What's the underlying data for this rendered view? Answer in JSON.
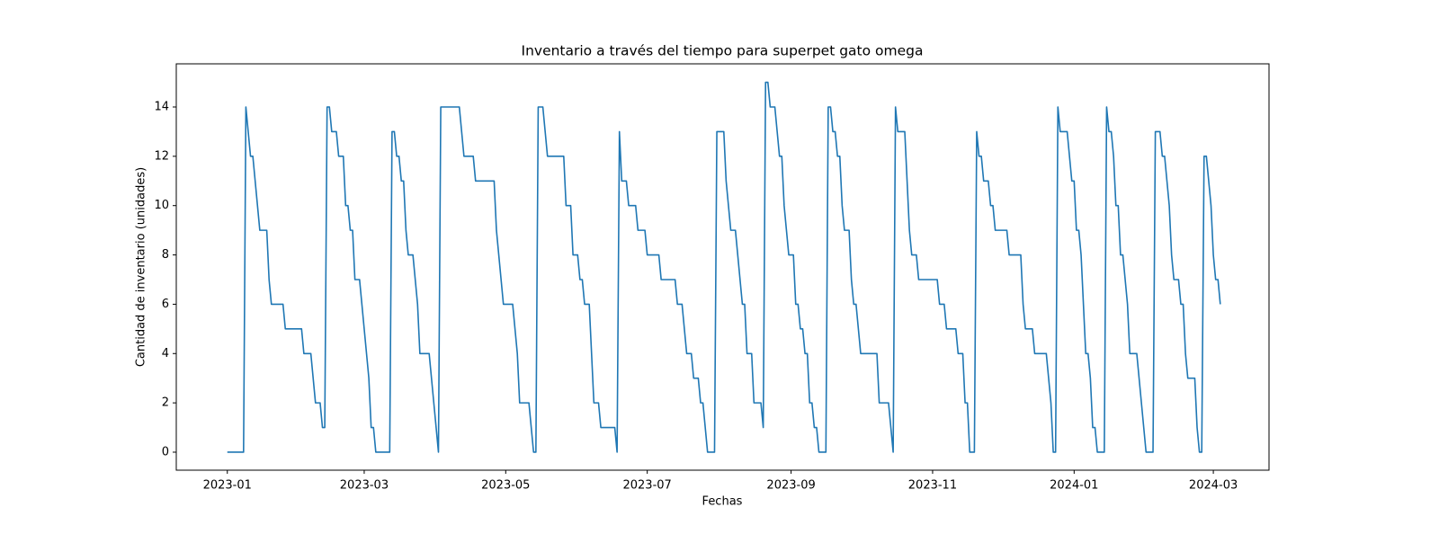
{
  "chart_data": {
    "type": "line",
    "title": "Inventario a través del tiempo para superpet gato omega",
    "xlabel": "Fechas",
    "ylabel": "Cantidad de inventario (unidades)",
    "x": [
      "2023-01-01",
      "2023-01-08",
      "2023-01-09",
      "2023-01-11",
      "2023-01-12",
      "2023-01-15",
      "2023-01-18",
      "2023-01-19",
      "2023-01-20",
      "2023-01-25",
      "2023-01-26",
      "2023-02-02",
      "2023-02-03",
      "2023-02-06",
      "2023-02-08",
      "2023-02-10",
      "2023-02-11",
      "2023-02-12",
      "2023-02-13",
      "2023-02-14",
      "2023-02-15",
      "2023-02-17",
      "2023-02-18",
      "2023-02-20",
      "2023-02-21",
      "2023-02-22",
      "2023-02-23",
      "2023-02-24",
      "2023-02-25",
      "2023-02-27",
      "2023-03-03",
      "2023-03-04",
      "2023-03-05",
      "2023-03-06",
      "2023-03-12",
      "2023-03-13",
      "2023-03-14",
      "2023-03-15",
      "2023-03-16",
      "2023-03-17",
      "2023-03-18",
      "2023-03-19",
      "2023-03-20",
      "2023-03-22",
      "2023-03-24",
      "2023-03-25",
      "2023-03-29",
      "2023-04-02",
      "2023-04-03",
      "2023-04-11",
      "2023-04-13",
      "2023-04-17",
      "2023-04-18",
      "2023-04-26",
      "2023-04-27",
      "2023-04-30",
      "2023-05-04",
      "2023-05-06",
      "2023-05-07",
      "2023-05-11",
      "2023-05-13",
      "2023-05-14",
      "2023-05-15",
      "2023-05-17",
      "2023-05-19",
      "2023-05-26",
      "2023-05-27",
      "2023-05-29",
      "2023-05-30",
      "2023-06-01",
      "2023-06-02",
      "2023-06-03",
      "2023-06-04",
      "2023-06-06",
      "2023-06-08",
      "2023-06-10",
      "2023-06-11",
      "2023-06-17",
      "2023-06-18",
      "2023-06-19",
      "2023-06-20",
      "2023-06-22",
      "2023-06-23",
      "2023-06-26",
      "2023-06-27",
      "2023-06-30",
      "2023-07-01",
      "2023-07-06",
      "2023-07-07",
      "2023-07-13",
      "2023-07-14",
      "2023-07-16",
      "2023-07-18",
      "2023-07-20",
      "2023-07-21",
      "2023-07-23",
      "2023-07-24",
      "2023-07-25",
      "2023-07-27",
      "2023-07-30",
      "2023-07-31",
      "2023-08-03",
      "2023-08-04",
      "2023-08-06",
      "2023-08-08",
      "2023-08-11",
      "2023-08-12",
      "2023-08-13",
      "2023-08-15",
      "2023-08-16",
      "2023-08-19",
      "2023-08-20",
      "2023-08-21",
      "2023-08-22",
      "2023-08-23",
      "2023-08-25",
      "2023-08-27",
      "2023-08-28",
      "2023-08-29",
      "2023-08-31",
      "2023-09-02",
      "2023-09-03",
      "2023-09-04",
      "2023-09-05",
      "2023-09-06",
      "2023-09-07",
      "2023-09-08",
      "2023-09-09",
      "2023-09-10",
      "2023-09-11",
      "2023-09-12",
      "2023-09-13",
      "2023-09-16",
      "2023-09-17",
      "2023-09-18",
      "2023-09-19",
      "2023-09-20",
      "2023-09-21",
      "2023-09-22",
      "2023-09-23",
      "2023-09-24",
      "2023-09-26",
      "2023-09-27",
      "2023-09-28",
      "2023-09-29",
      "2023-10-01",
      "2023-10-08",
      "2023-10-09",
      "2023-10-13",
      "2023-10-15",
      "2023-10-16",
      "2023-10-17",
      "2023-10-20",
      "2023-10-22",
      "2023-10-23",
      "2023-10-25",
      "2023-10-26",
      "2023-11-03",
      "2023-11-04",
      "2023-11-06",
      "2023-11-07",
      "2023-11-11",
      "2023-11-12",
      "2023-11-14",
      "2023-11-15",
      "2023-11-16",
      "2023-11-17",
      "2023-11-19",
      "2023-11-20",
      "2023-11-21",
      "2023-11-22",
      "2023-11-23",
      "2023-11-25",
      "2023-11-26",
      "2023-11-27",
      "2023-11-28",
      "2023-12-03",
      "2023-12-04",
      "2023-12-09",
      "2023-12-10",
      "2023-12-11",
      "2023-12-14",
      "2023-12-15",
      "2023-12-20",
      "2023-12-21",
      "2023-12-22",
      "2023-12-23",
      "2023-12-24",
      "2023-12-25",
      "2023-12-26",
      "2023-12-29",
      "2023-12-31",
      "2024-01-01",
      "2024-01-02",
      "2024-01-03",
      "2024-01-04",
      "2024-01-06",
      "2024-01-07",
      "2024-01-08",
      "2024-01-09",
      "2024-01-10",
      "2024-01-11",
      "2024-01-14",
      "2024-01-15",
      "2024-01-16",
      "2024-01-17",
      "2024-01-18",
      "2024-01-19",
      "2024-01-20",
      "2024-01-21",
      "2024-01-22",
      "2024-01-24",
      "2024-01-25",
      "2024-01-28",
      "2024-02-01",
      "2024-02-04",
      "2024-02-05",
      "2024-02-07",
      "2024-02-08",
      "2024-02-09",
      "2024-02-11",
      "2024-02-12",
      "2024-02-13",
      "2024-02-15",
      "2024-02-16",
      "2024-02-17",
      "2024-02-18",
      "2024-02-19",
      "2024-02-22",
      "2024-02-23",
      "2024-02-24",
      "2024-02-25",
      "2024-02-26",
      "2024-02-27",
      "2024-02-29",
      "2024-03-01",
      "2024-03-02",
      "2024-03-03",
      "2024-03-04"
    ],
    "series": [
      {
        "color": "#1f77b4",
        "values": [
          0,
          0,
          14,
          12,
          12,
          9,
          9,
          7,
          6,
          6,
          5,
          5,
          4,
          4,
          2,
          2,
          1,
          1,
          14,
          14,
          13,
          13,
          12,
          12,
          10,
          10,
          9,
          9,
          7,
          7,
          3,
          1,
          1,
          0,
          0,
          13,
          13,
          12,
          12,
          11,
          11,
          9,
          8,
          8,
          6,
          4,
          4,
          0,
          14,
          14,
          12,
          12,
          11,
          11,
          9,
          6,
          6,
          4,
          2,
          2,
          0,
          0,
          14,
          14,
          12,
          12,
          10,
          10,
          8,
          8,
          7,
          7,
          6,
          6,
          2,
          2,
          1,
          1,
          0,
          13,
          11,
          11,
          10,
          10,
          9,
          9,
          8,
          8,
          7,
          7,
          6,
          6,
          4,
          4,
          3,
          3,
          2,
          2,
          0,
          0,
          13,
          13,
          11,
          9,
          9,
          6,
          6,
          4,
          4,
          2,
          2,
          1,
          15,
          15,
          14,
          14,
          12,
          12,
          10,
          8,
          8,
          6,
          6,
          5,
          5,
          4,
          4,
          2,
          2,
          1,
          1,
          0,
          0,
          14,
          14,
          13,
          13,
          12,
          12,
          10,
          9,
          9,
          7,
          6,
          6,
          4,
          4,
          2,
          2,
          0,
          14,
          13,
          13,
          9,
          8,
          8,
          7,
          7,
          6,
          6,
          5,
          5,
          4,
          4,
          2,
          2,
          0,
          0,
          13,
          12,
          12,
          11,
          11,
          10,
          10,
          9,
          9,
          8,
          8,
          6,
          5,
          5,
          4,
          4,
          3,
          2,
          0,
          0,
          14,
          13,
          13,
          11,
          11,
          9,
          9,
          8,
          4,
          4,
          3,
          1,
          1,
          0,
          0,
          14,
          13,
          13,
          12,
          10,
          10,
          8,
          8,
          6,
          4,
          4,
          0,
          0,
          13,
          13,
          12,
          12,
          10,
          8,
          7,
          7,
          6,
          6,
          4,
          3,
          3,
          1,
          0,
          0,
          12,
          12,
          10,
          8,
          7,
          7,
          6
        ]
      }
    ],
    "xlim": [
      "2022-12-10",
      "2024-03-25"
    ],
    "xticks": [
      {
        "value": "2023-01-01",
        "label": "2023-01"
      },
      {
        "value": "2023-03-01",
        "label": "2023-03"
      },
      {
        "value": "2023-05-01",
        "label": "2023-05"
      },
      {
        "value": "2023-07-01",
        "label": "2023-07"
      },
      {
        "value": "2023-09-01",
        "label": "2023-09"
      },
      {
        "value": "2023-11-01",
        "label": "2023-11"
      },
      {
        "value": "2024-01-01",
        "label": "2024-01"
      },
      {
        "value": "2024-03-01",
        "label": "2024-03"
      }
    ],
    "ylim": [
      -0.73,
      15.75
    ],
    "yticks": [
      0,
      2,
      4,
      6,
      8,
      10,
      12,
      14
    ],
    "grid": false
  }
}
